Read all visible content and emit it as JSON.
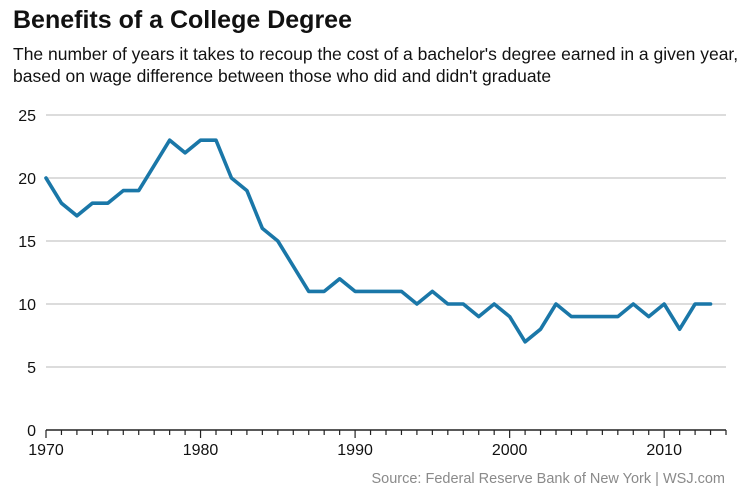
{
  "header": {
    "title": "Benefits of a College Degree",
    "subtitle": "The number of years it takes to recoup the cost of a bachelor's degree earned in a given year, based on wage difference between those who did and didn't graduate"
  },
  "footer": {
    "source": "Source: Federal Reserve Bank of New York  |  WSJ.com"
  },
  "colors": {
    "line": "#1a77a8",
    "grid": "#c8c8c8",
    "axis": "#222222"
  },
  "chart_data": {
    "type": "line",
    "title": "Benefits of a College Degree",
    "xlabel": "",
    "ylabel": "",
    "xlim": [
      1970,
      2014
    ],
    "ylim": [
      0,
      25
    ],
    "yticks": [
      0,
      5,
      10,
      15,
      20,
      25
    ],
    "xticks": [
      1970,
      1980,
      1990,
      2000,
      2010
    ],
    "grid": "horizontal",
    "legend": "none",
    "series": [
      {
        "x": [
          1970,
          1971,
          1972,
          1973,
          1974,
          1975,
          1976,
          1977,
          1978,
          1979,
          1980,
          1981,
          1982,
          1983,
          1984,
          1985,
          1986,
          1987,
          1988,
          1989,
          1990,
          1991,
          1992,
          1993,
          1994,
          1995,
          1996,
          1997,
          1998,
          1999,
          2000,
          2001,
          2002,
          2003,
          2004,
          2005,
          2006,
          2007,
          2008,
          2009,
          2010,
          2011,
          2012,
          2013
        ],
        "values": [
          20,
          18,
          17,
          18,
          18,
          19,
          19,
          21,
          23,
          22,
          23,
          23,
          20,
          19,
          16,
          15,
          13,
          11,
          11,
          12,
          11,
          11,
          11,
          11,
          10,
          11,
          10,
          10,
          9,
          10,
          9,
          7,
          8,
          10,
          9,
          9,
          9,
          9,
          10,
          9,
          10,
          8,
          10,
          10
        ]
      }
    ]
  }
}
